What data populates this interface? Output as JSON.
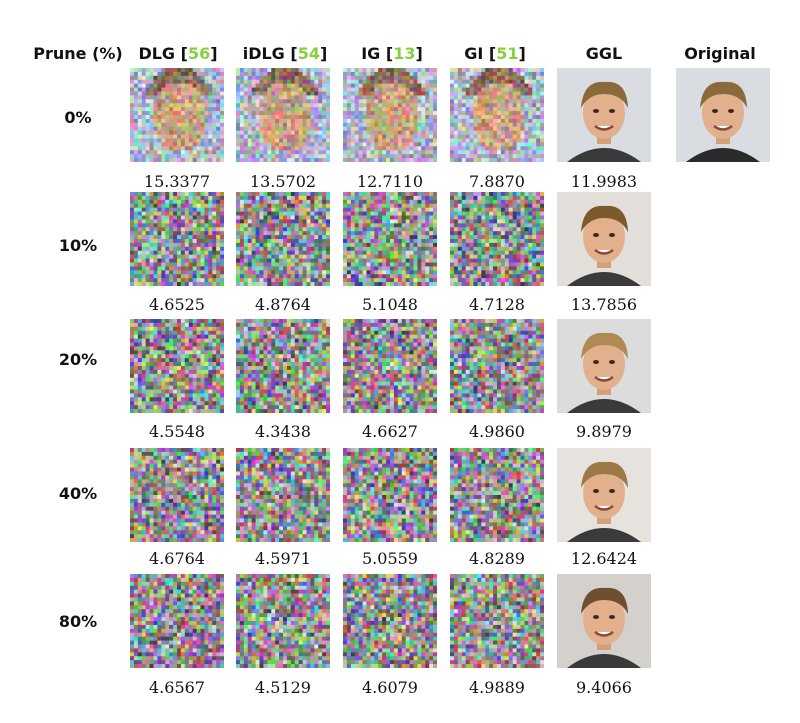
{
  "header": {
    "prune_label": "Prune (%)",
    "columns": [
      {
        "name": "DLG",
        "cite": "56"
      },
      {
        "name": "iDLG",
        "cite": "54"
      },
      {
        "name": "IG",
        "cite": "13"
      },
      {
        "name": "GI",
        "cite": "51"
      },
      {
        "name": "GGL",
        "cite": ""
      },
      {
        "name": "Original",
        "cite": ""
      }
    ]
  },
  "rows": [
    {
      "prune": "0%",
      "values": [
        "15.3377",
        "13.5702",
        "12.7110",
        "7.8870",
        "11.9983"
      ]
    },
    {
      "prune": "10%",
      "values": [
        "4.6525",
        "4.8764",
        "5.1048",
        "4.7128",
        "13.7856"
      ]
    },
    {
      "prune": "20%",
      "values": [
        "4.5548",
        "4.3438",
        "4.6627",
        "4.9860",
        "9.8979"
      ]
    },
    {
      "prune": "40%",
      "values": [
        "4.6764",
        "4.5971",
        "5.0559",
        "4.8289",
        "12.6424"
      ]
    },
    {
      "prune": "80%",
      "values": [
        "4.6567",
        "4.5129",
        "4.6079",
        "4.9889",
        "9.4066"
      ]
    }
  ]
}
